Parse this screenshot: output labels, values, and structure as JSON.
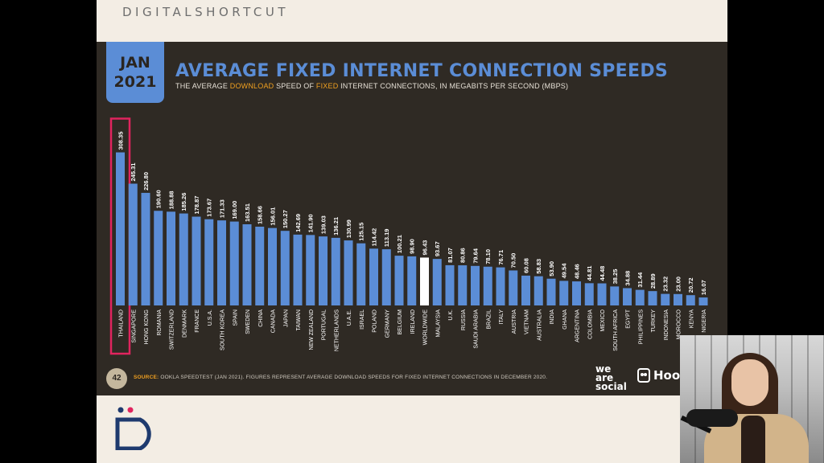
{
  "slide": {
    "brand": "DIGITALSHORTCUT",
    "date_line1": "JAN",
    "date_line2": "2021",
    "title": "AVERAGE FIXED INTERNET CONNECTION SPEEDS",
    "subtitle_parts": [
      "THE AVERAGE ",
      "DOWNLOAD",
      " SPEED OF ",
      "FIXED",
      " INTERNET CONNECTIONS, IN MEGABITS PER SECOND (MBPS)"
    ],
    "page_number": "42",
    "source_label": "SOURCE:",
    "source_text": " OOKLA SPEEDTEST (JAN 2021). FIGURES REPRESENT AVERAGE DOWNLOAD SPEEDS FOR FIXED INTERNET CONNECTIONS IN DECEMBER 2020.",
    "logo_was": [
      "we",
      "are",
      "social"
    ],
    "logo_hootsuite": "Hoo",
    "colors": {
      "bar": "#5b8dd6",
      "highlight_bar": "#ffffff",
      "panel": "#2f2a24",
      "accent": "#f0a020",
      "highlight_box": "#e0245e"
    }
  },
  "chart_data": {
    "type": "bar",
    "title": "AVERAGE FIXED INTERNET CONNECTION SPEEDS",
    "categories": [
      "THAILAND",
      "SINGAPORE",
      "HONG KONG",
      "ROMANIA",
      "SWITZERLAND",
      "DENMARK",
      "FRANCE",
      "U.S.A.",
      "SOUTH KOREA",
      "SPAIN",
      "SWEDEN",
      "CHINA",
      "CANADA",
      "JAPAN",
      "TAIWAN",
      "NEW ZEALAND",
      "PORTUGAL",
      "NETHERLANDS",
      "U.A.E.",
      "ISRAEL",
      "POLAND",
      "GERMANY",
      "BELGIUM",
      "IRELAND",
      "WORLDWIDE",
      "MALAYSIA",
      "U.K.",
      "RUSSIA",
      "SAUDI ARABIA",
      "BRAZIL",
      "ITALY",
      "AUSTRIA",
      "VIETNAM",
      "AUSTRALIA",
      "INDIA",
      "GHANA",
      "ARGENTINA",
      "COLOMBIA",
      "MEXICO",
      "SOUTH AFRICA",
      "EGYPT",
      "PHILIPPINES",
      "TURKEY",
      "INDONESIA",
      "MOROCCO",
      "KENYA",
      "NIGERIA"
    ],
    "values": [
      308.35,
      245.31,
      226.8,
      190.6,
      188.88,
      185.26,
      178.87,
      173.67,
      171.33,
      169.0,
      163.51,
      158.66,
      156.01,
      150.27,
      142.69,
      141.9,
      139.03,
      136.21,
      130.99,
      125.15,
      114.42,
      113.19,
      100.21,
      98.9,
      96.43,
      93.67,
      81.07,
      80.86,
      79.64,
      78.1,
      76.71,
      70.5,
      60.08,
      58.83,
      53.9,
      49.54,
      48.46,
      44.81,
      44.48,
      38.25,
      34.88,
      31.44,
      28.89,
      23.32,
      23.0,
      20.72,
      16.07
    ],
    "value_labels": [
      "308.35",
      "245.31",
      "226.80",
      "190.60",
      "188.88",
      "185.26",
      "178.87",
      "173.67",
      "171.33",
      "169.00",
      "163.51",
      "158.66",
      "156.01",
      "150.27",
      "142.69",
      "141.90",
      "139.03",
      "136.21",
      "130.99",
      "125.15",
      "114.42",
      "113.19",
      "100.21",
      "98.90",
      "96.43",
      "93.67",
      "81.07",
      "80.86",
      "79.64",
      "78.10",
      "76.71",
      "70.50",
      "60.08",
      "58.83",
      "53.90",
      "49.54",
      "48.46",
      "44.81",
      "44.48",
      "38.25",
      "34.88",
      "31.44",
      "28.89",
      "23.32",
      "23.00",
      "20.72",
      "16.07"
    ],
    "highlight_category": "WORLDWIDE",
    "boxed_category": "THAILAND",
    "ylim": [
      0,
      340
    ],
    "grid": false,
    "legend": "none"
  }
}
